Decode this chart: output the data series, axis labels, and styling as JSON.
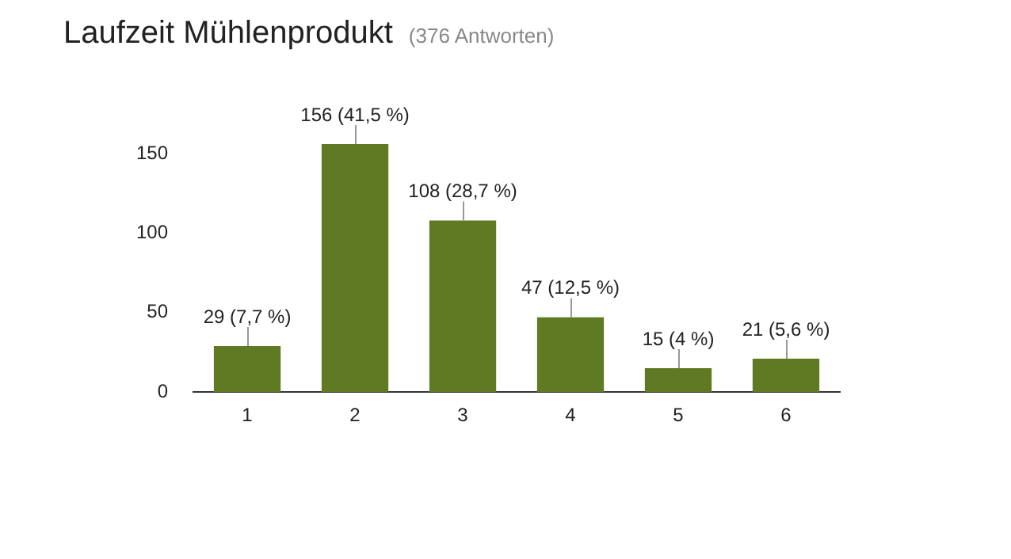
{
  "chart_data": {
    "type": "bar",
    "title": "Laufzeit Mühlenprodukt",
    "subtitle": "(376 Antworten)",
    "categories": [
      "1",
      "2",
      "3",
      "4",
      "5",
      "6"
    ],
    "values": [
      29,
      156,
      108,
      47,
      15,
      21
    ],
    "value_labels": [
      "29 (7,7 %)",
      "156 (41,5 %)",
      "108 (28,7 %)",
      "47 (12,5 %)",
      "15 (4 %)",
      "21 (5,6 %)"
    ],
    "color": "#5f7a23",
    "ylim": [
      0,
      160
    ],
    "yticks": [
      0,
      50,
      100,
      150
    ],
    "grid": false,
    "legend": false
  }
}
